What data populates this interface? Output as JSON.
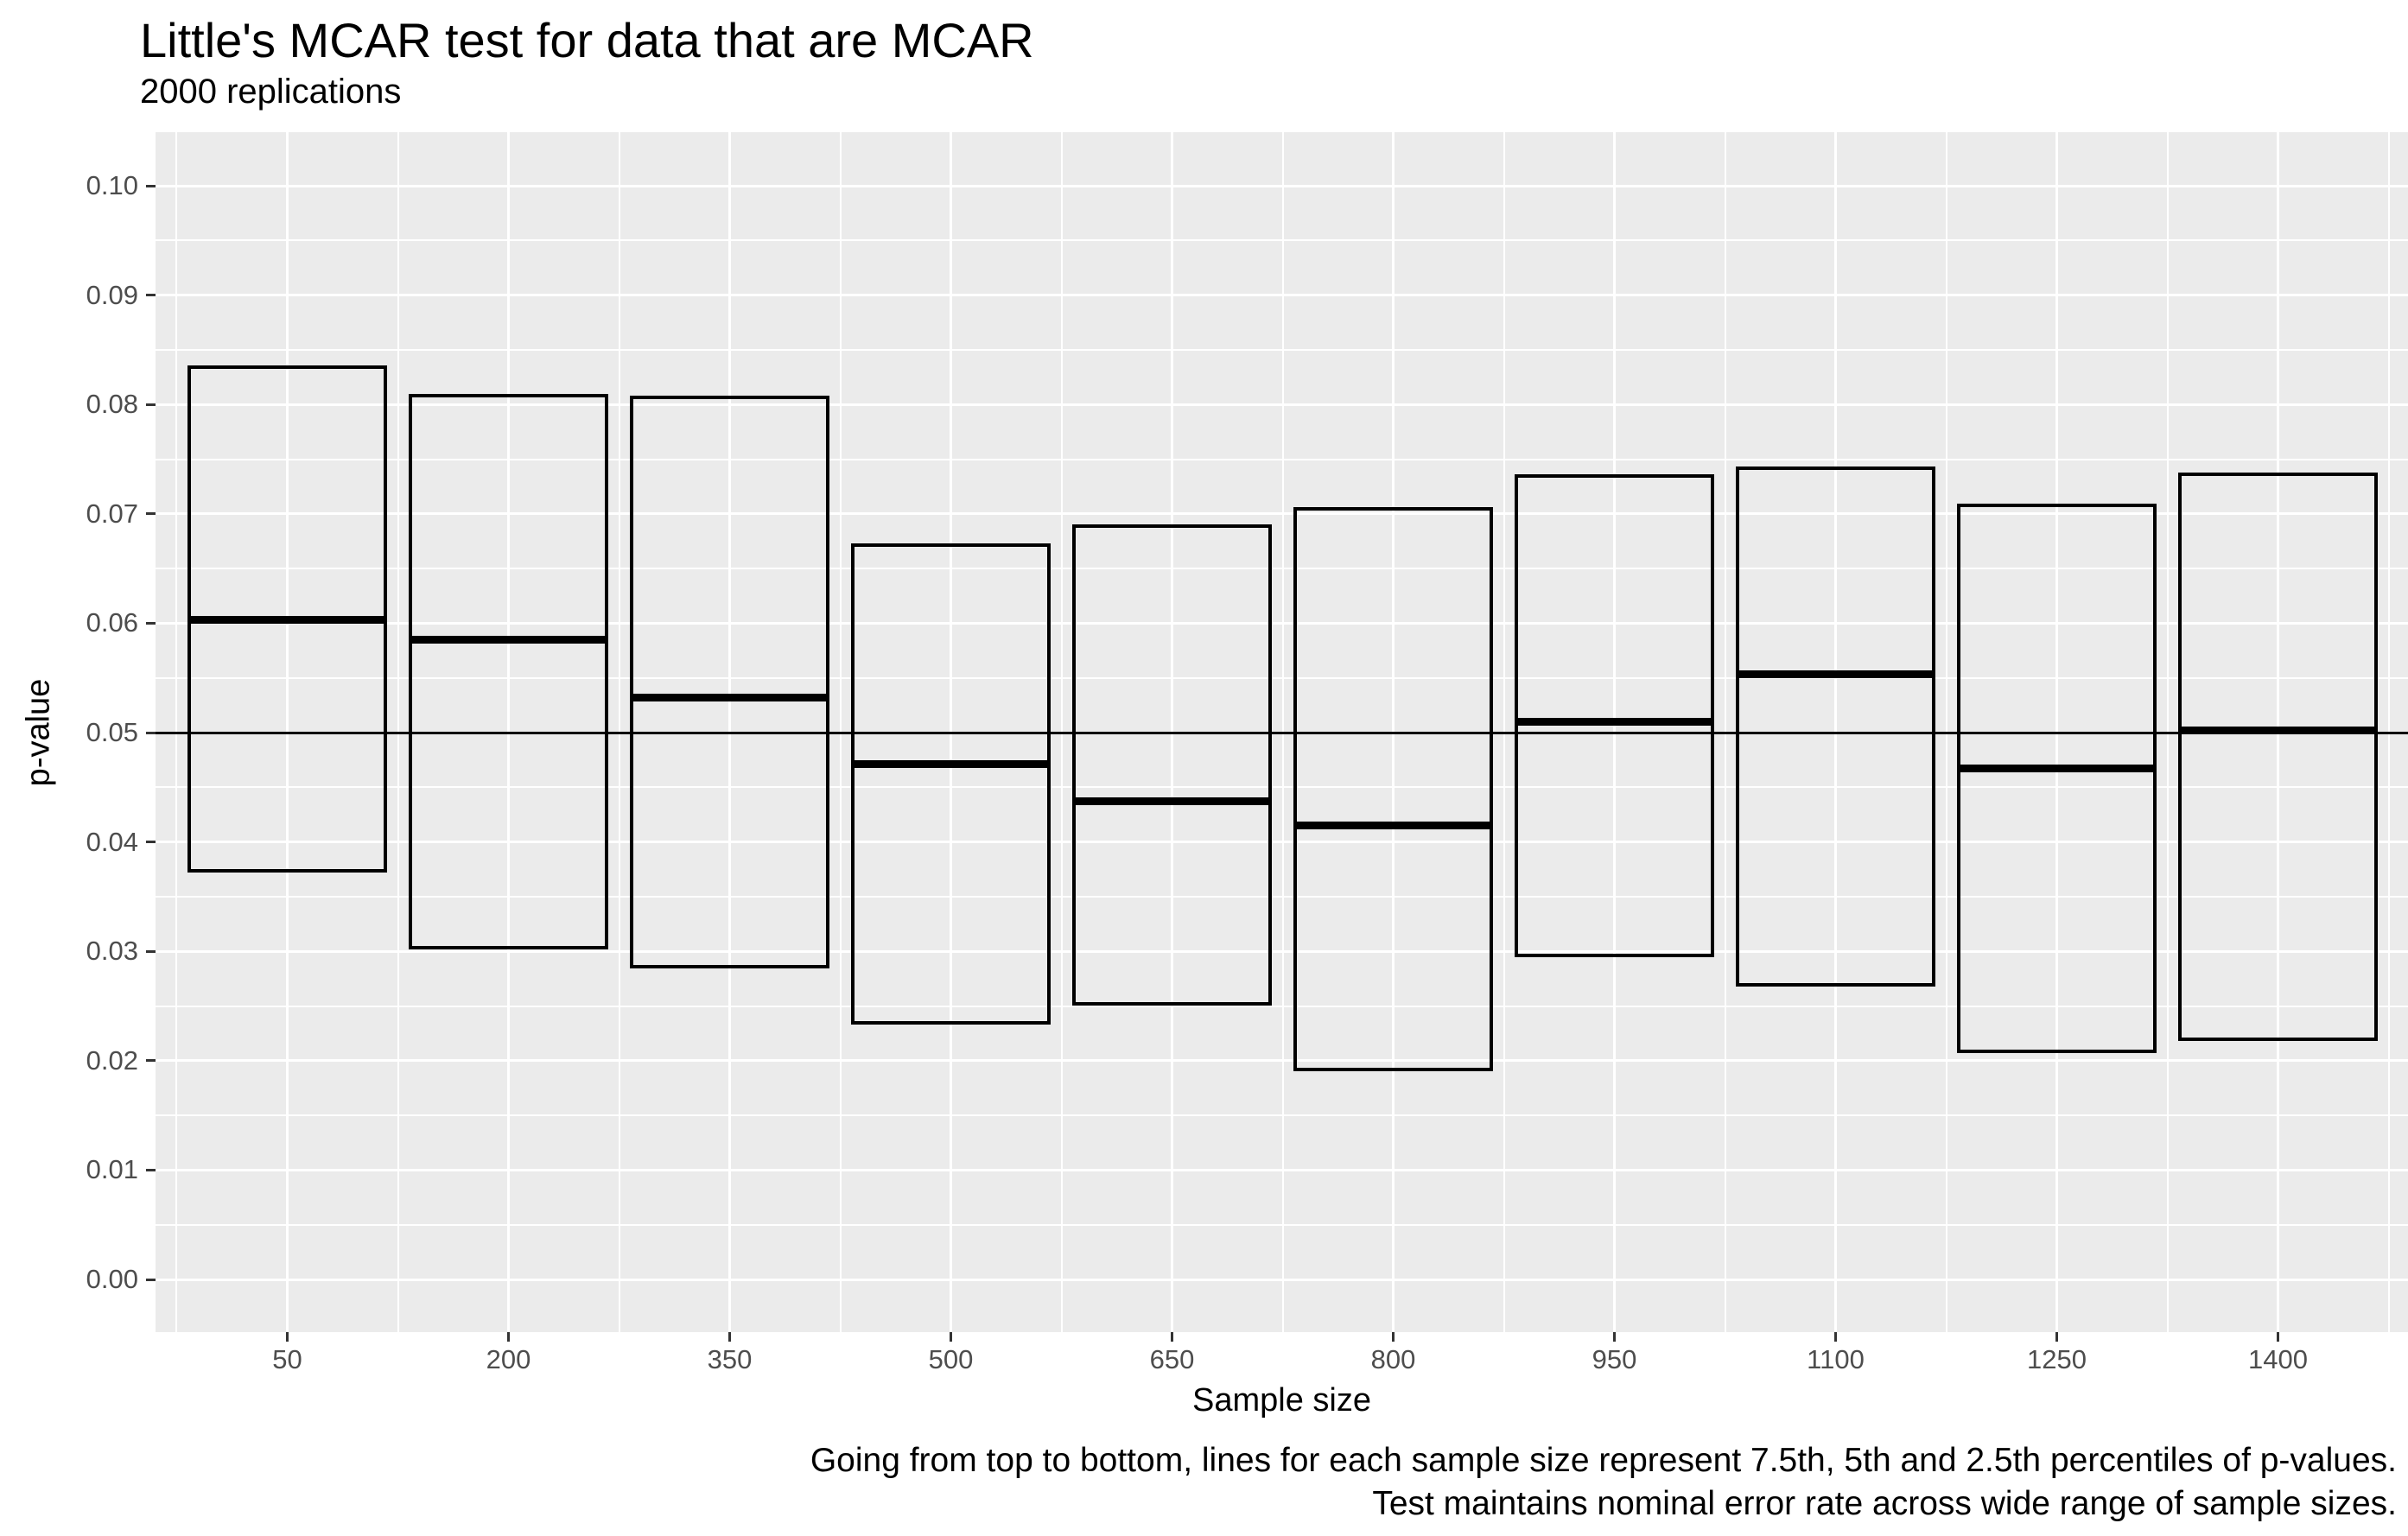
{
  "header": {
    "title": "Little's MCAR test for data that are MCAR",
    "subtitle": "2000 replications"
  },
  "caption": {
    "line1": "Going from top to bottom, lines for each sample size represent 7.5th, 5th and 2.5th percentiles of p-values.",
    "line2": "Test maintains nominal error rate across wide range of sample sizes."
  },
  "axes": {
    "x_label": "Sample size",
    "y_label": "p-value"
  },
  "colors": {
    "panel_background": "#EBEBEB",
    "gridline": "#FFFFFF",
    "box_stroke": "#000000",
    "reference_line": "#000000",
    "tick_label": "#4D4D4D",
    "tick_mark": "#333333"
  },
  "chart_data": {
    "type": "crossbar",
    "title": "Little's MCAR test for data that are MCAR",
    "subtitle": "2000 replications",
    "xlabel": "Sample size",
    "ylabel": "p-value",
    "grid": "major+minor",
    "legend": "none",
    "ylim": [
      0.0,
      0.1
    ],
    "x_ticks": [
      50,
      200,
      350,
      500,
      650,
      800,
      950,
      1100,
      1250,
      1400
    ],
    "y_ticks": [
      0.0,
      0.01,
      0.02,
      0.03,
      0.04,
      0.05,
      0.06,
      0.07,
      0.08,
      0.09,
      0.1
    ],
    "x": [
      50,
      200,
      350,
      500,
      650,
      800,
      950,
      1100,
      1250,
      1400
    ],
    "series": [
      {
        "name": "7.5th percentile (box top)",
        "values": [
          0.0836,
          0.081,
          0.0808,
          0.0673,
          0.069,
          0.0706,
          0.0736,
          0.0743,
          0.0709,
          0.0738
        ]
      },
      {
        "name": "5th percentile (thick middle line)",
        "values": [
          0.0603,
          0.0585,
          0.0532,
          0.0471,
          0.0437,
          0.0415,
          0.051,
          0.0553,
          0.0467,
          0.0502
        ]
      },
      {
        "name": "2.5th percentile (box bottom)",
        "values": [
          0.0372,
          0.0302,
          0.0284,
          0.0233,
          0.025,
          0.019,
          0.0295,
          0.0268,
          0.0207,
          0.0218
        ]
      }
    ],
    "reference_line_y": 0.05
  }
}
